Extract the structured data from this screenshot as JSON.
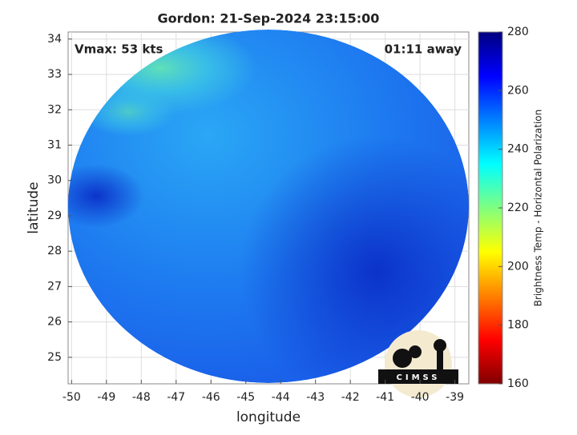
{
  "chart_data": {
    "type": "map",
    "title": "Gordon: 21-Sep-2024 23:15:00",
    "x_label": "longitude",
    "y_label": "latitude",
    "xlim": [
      -50.1,
      -38.6
    ],
    "xticks": [
      -50,
      -49,
      -48,
      -47,
      -46,
      -45,
      -44,
      -43,
      -42,
      -41,
      -40,
      -39
    ],
    "ylim": [
      24.25,
      34.2
    ],
    "yticks": [
      25,
      26,
      27,
      28,
      29,
      30,
      31,
      32,
      33,
      34
    ],
    "grid": true,
    "annotations": [
      "Vmax: 53 kts",
      "01:11 away"
    ],
    "logo": "CIMSS",
    "colorbar": {
      "label": "Brightness Temp - Horizontal Polarization",
      "colormap": "jet",
      "clim": [
        160,
        280
      ],
      "ticks": [
        160,
        180,
        200,
        220,
        240,
        260,
        280
      ]
    }
  }
}
